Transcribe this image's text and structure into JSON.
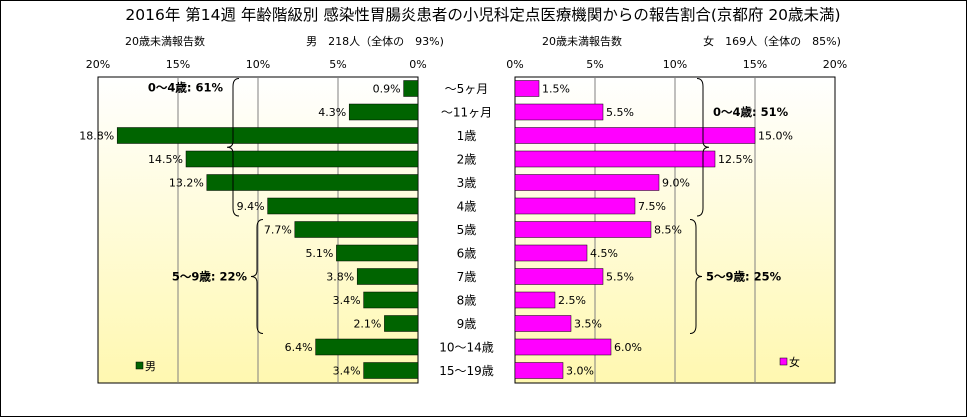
{
  "title": "2016年 第14週 年齢階級別 感染性胃腸炎患者の小児科定点医療機関からの報告割合(京都府 20歳未満)",
  "age_labels": [
    "～5ヶ月",
    "～11ヶ月",
    "1歳",
    "2歳",
    "3歳",
    "4歳",
    "5歳",
    "6歳",
    "7歳",
    "8歳",
    "9歳",
    "10～14歳",
    "15～19歳"
  ],
  "colors": {
    "male": "#006400",
    "female": "#ff00ff",
    "gradient_top": "#ffffff",
    "gradient_bottom": "#fff8b0"
  },
  "chart_data": [
    {
      "type": "bar",
      "orientation": "horizontal",
      "direction": "right-to-left",
      "header_left": "20歳未満報告数",
      "header_right": "男　218人（全体の　93%)",
      "legend": "男",
      "legend_placement": "bottom-left",
      "xlim": [
        0,
        20
      ],
      "x_ticks": [
        "20%",
        "15%",
        "10%",
        "5%",
        "0%"
      ],
      "categories": [
        "～5ヶ月",
        "～11ヶ月",
        "1歳",
        "2歳",
        "3歳",
        "4歳",
        "5歳",
        "6歳",
        "7歳",
        "8歳",
        "9歳",
        "10～14歳",
        "15～19歳"
      ],
      "values": [
        0.9,
        4.3,
        18.8,
        14.5,
        13.2,
        9.4,
        7.7,
        5.1,
        3.8,
        3.4,
        2.1,
        6.4,
        3.4
      ],
      "value_labels": [
        "0.9%",
        "4.3%",
        "18.8%",
        "14.5%",
        "13.2%",
        "9.4%",
        "7.7%",
        "5.1%",
        "3.8%",
        "3.4%",
        "2.1%",
        "6.4%",
        "3.4%"
      ],
      "groups": [
        {
          "label": "0～4歳: 61%",
          "from": 0,
          "to": 5
        },
        {
          "label": "5～9歳: 22%",
          "from": 6,
          "to": 10
        }
      ]
    },
    {
      "type": "bar",
      "orientation": "horizontal",
      "direction": "left-to-right",
      "header_left": "20歳未満報告数",
      "header_right": "女　169人（全体の　85%)",
      "legend": "女",
      "legend_placement": "bottom-right",
      "xlim": [
        0,
        20
      ],
      "x_ticks": [
        "0%",
        "5%",
        "10%",
        "15%",
        "20%"
      ],
      "categories": [
        "～5ヶ月",
        "～11ヶ月",
        "1歳",
        "2歳",
        "3歳",
        "4歳",
        "5歳",
        "6歳",
        "7歳",
        "8歳",
        "9歳",
        "10～14歳",
        "15～19歳"
      ],
      "values": [
        1.5,
        5.5,
        15.0,
        12.5,
        9.0,
        7.5,
        8.5,
        4.5,
        5.5,
        2.5,
        3.5,
        6.0,
        3.0
      ],
      "value_labels": [
        "1.5%",
        "5.5%",
        "15.0%",
        "12.5%",
        "9.0%",
        "7.5%",
        "8.5%",
        "4.5%",
        "5.5%",
        "2.5%",
        "3.5%",
        "6.0%",
        "3.0%"
      ],
      "groups": [
        {
          "label": "0～4歳: 51%",
          "from": 0,
          "to": 5
        },
        {
          "label": "5～9歳: 25%",
          "from": 6,
          "to": 10
        }
      ]
    }
  ]
}
